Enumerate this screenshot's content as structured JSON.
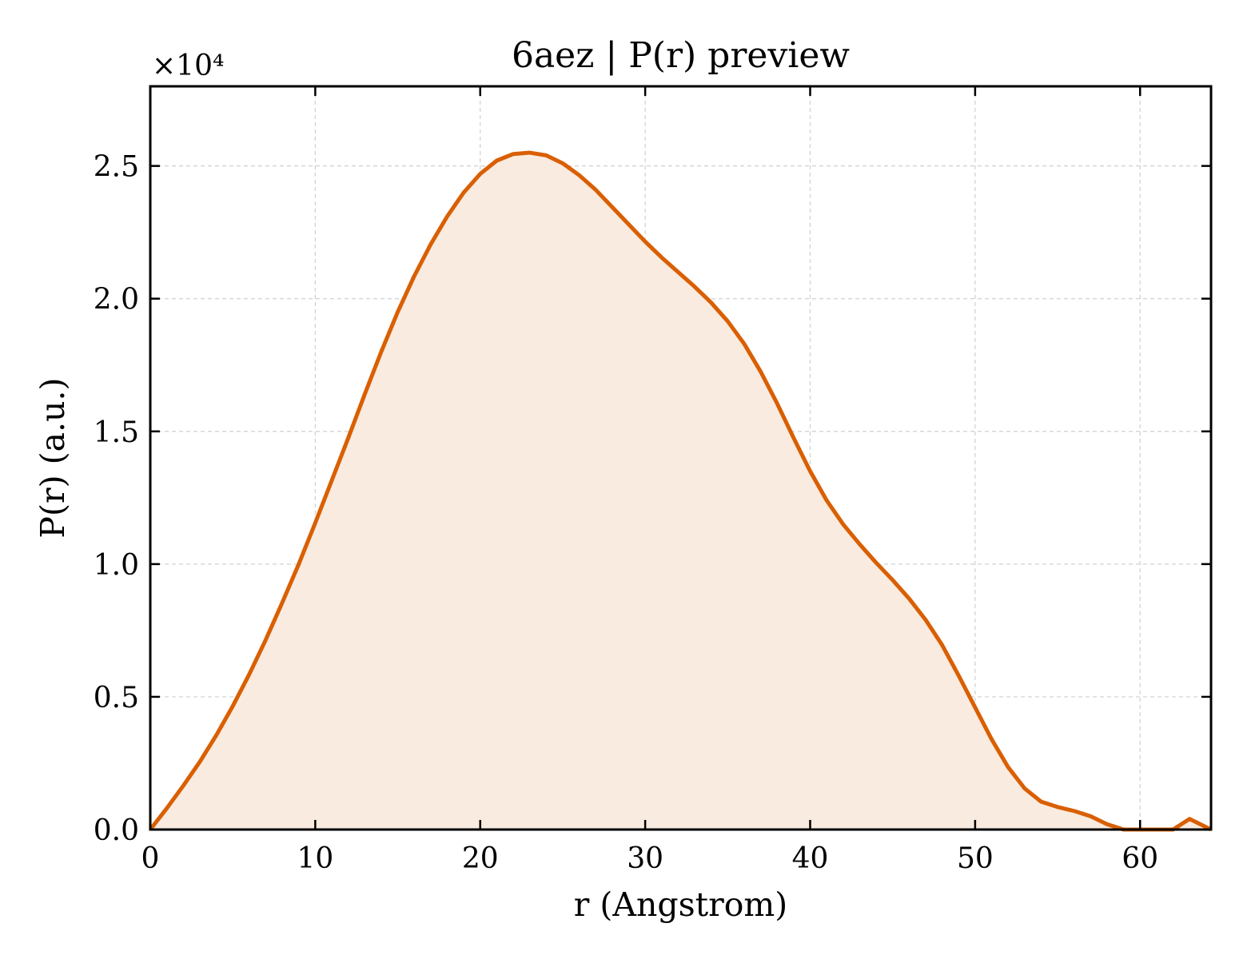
{
  "chart_data": {
    "type": "area",
    "title": "6aez | P(r) preview",
    "xlabel": "r (Angstrom)",
    "ylabel": "P(r) (a.u.)",
    "y_offset_label": "×10⁴",
    "y_scale": 10000,
    "xlim": [
      0,
      64.3
    ],
    "ylim": [
      0,
      28000
    ],
    "xticks": [
      0,
      10,
      20,
      30,
      40,
      50,
      60
    ],
    "xtick_labels": [
      "0",
      "10",
      "20",
      "30",
      "40",
      "50",
      "60"
    ],
    "yticks": [
      0,
      5000,
      10000,
      15000,
      20000,
      25000
    ],
    "ytick_labels": [
      "0.0",
      "0.5",
      "1.0",
      "1.5",
      "2.0",
      "2.5"
    ],
    "grid": true,
    "colors": {
      "line": "#d95f02",
      "fill": "#f9ebe0",
      "grid": "#d0d0d0",
      "axes": "#000000"
    },
    "series": [
      {
        "x": [
          0.0,
          1.0,
          2.0,
          3.0,
          4.0,
          5.0,
          6.0,
          7.0,
          8.0,
          9.0,
          10.0,
          11.0,
          12.0,
          13.0,
          14.0,
          15.0,
          16.0,
          17.0,
          18.0,
          19.0,
          20.0,
          21.0,
          22.0,
          23.0,
          24.0,
          25.0,
          26.0,
          27.0,
          28.0,
          29.0,
          30.0,
          31.0,
          32.0,
          33.0,
          34.0,
          35.0,
          36.0,
          37.0,
          38.0,
          39.0,
          40.0,
          41.0,
          42.0,
          43.0,
          44.0,
          45.0,
          46.0,
          47.0,
          48.0,
          49.0,
          50.0,
          51.0,
          52.0,
          53.0,
          54.0,
          55.0,
          56.0,
          57.0,
          58.0,
          59.0,
          60.0,
          61.0,
          62.0,
          63.0,
          64.3
        ],
        "y": [
          0,
          800,
          1650,
          2550,
          3550,
          4650,
          5850,
          7150,
          8550,
          10000,
          11550,
          13150,
          14750,
          16400,
          18000,
          19500,
          20850,
          22050,
          23100,
          24000,
          24700,
          25200,
          25450,
          25500,
          25400,
          25100,
          24650,
          24100,
          23450,
          22800,
          22150,
          21550,
          21000,
          20450,
          19850,
          19150,
          18300,
          17250,
          16050,
          14750,
          13500,
          12400,
          11500,
          10750,
          10050,
          9400,
          8700,
          7900,
          6950,
          5800,
          4600,
          3400,
          2350,
          1550,
          1050,
          850,
          700,
          500,
          200,
          0,
          0,
          0,
          0,
          400,
          0
        ]
      }
    ]
  }
}
